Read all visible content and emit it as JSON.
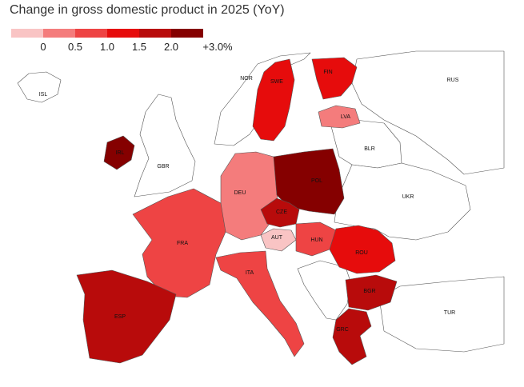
{
  "title": "Change in gross domestic product in 2025 (YoY)",
  "legend": {
    "ticks": [
      "0",
      "0.5",
      "1.0",
      "1.5",
      "2.0",
      "+3.0%"
    ],
    "colors": [
      "#f9c4c4",
      "#f47c7c",
      "#ee4444",
      "#e60c0c",
      "#b80b0b",
      "#850000"
    ]
  },
  "colors": {
    "background": "#ffffff",
    "no_data": "#ffffff",
    "border": "#555555"
  },
  "countries": [
    {
      "code": "ISL",
      "label": "ISL",
      "bin": null
    },
    {
      "code": "NOR",
      "label": "NOR",
      "bin": null
    },
    {
      "code": "SWE",
      "label": "SWE",
      "bin": 3
    },
    {
      "code": "FIN",
      "label": "FIN",
      "bin": 3
    },
    {
      "code": "RUS",
      "label": "RUS",
      "bin": null
    },
    {
      "code": "LVA",
      "label": "LVA",
      "bin": 1
    },
    {
      "code": "IRL",
      "label": "IRL",
      "bin": 5
    },
    {
      "code": "GBR",
      "label": "GBR",
      "bin": null
    },
    {
      "code": "BLR",
      "label": "BLR",
      "bin": null
    },
    {
      "code": "DEU",
      "label": "DEU",
      "bin": 1
    },
    {
      "code": "POL",
      "label": "POL",
      "bin": 5
    },
    {
      "code": "UKR",
      "label": "UKR",
      "bin": null
    },
    {
      "code": "CZE",
      "label": "CZE",
      "bin": 4
    },
    {
      "code": "FRA",
      "label": "FRA",
      "bin": 2
    },
    {
      "code": "AUT",
      "label": "AUT",
      "bin": 0
    },
    {
      "code": "HUN",
      "label": "HUN",
      "bin": 2
    },
    {
      "code": "ROU",
      "label": "ROU",
      "bin": 3
    },
    {
      "code": "ITA",
      "label": "ITA",
      "bin": 2
    },
    {
      "code": "BGR",
      "label": "BGR",
      "bin": 4
    },
    {
      "code": "ESP",
      "label": "ESP",
      "bin": 4
    },
    {
      "code": "TUR",
      "label": "TUR",
      "bin": null
    },
    {
      "code": "GRC",
      "label": "GRC",
      "bin": 4
    }
  ]
}
